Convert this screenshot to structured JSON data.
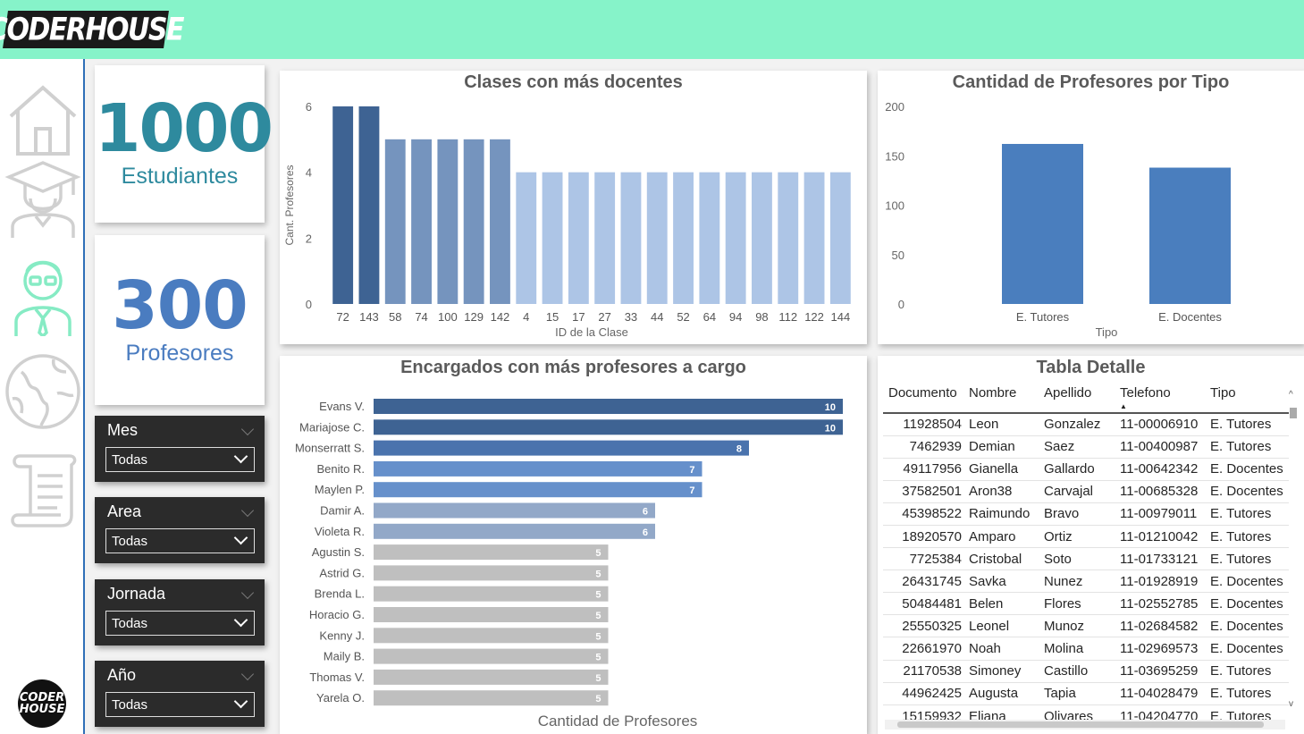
{
  "header": {
    "logo_text": "CODERHOUSE"
  },
  "sidebar": {
    "items": [
      {
        "name": "home",
        "icon": "home-icon",
        "active": false
      },
      {
        "name": "students",
        "icon": "graduate-icon",
        "active": false
      },
      {
        "name": "teachers",
        "icon": "teacher-icon",
        "active": true
      },
      {
        "name": "world",
        "icon": "globe-icon",
        "active": false
      },
      {
        "name": "scroll",
        "icon": "scroll-icon",
        "active": false
      }
    ],
    "bottom_logo": [
      "CODER",
      "HOUSE"
    ]
  },
  "kpis": {
    "students": {
      "value": "1000",
      "label": "Estudiantes",
      "color": "#2e8a9e"
    },
    "teachers": {
      "value": "300",
      "label": "Profesores",
      "color": "#4a7cc0"
    }
  },
  "slicers": [
    {
      "title": "Mes",
      "value": "Todas"
    },
    {
      "title": "Area",
      "value": "Todas"
    },
    {
      "title": "Jornada",
      "value": "Todas"
    },
    {
      "title": "Año",
      "value": "Todas"
    }
  ],
  "charts": {
    "clases": {
      "title": "Clases con más docentes"
    },
    "tipo": {
      "title": "Cantidad de Profesores por Tipo"
    },
    "encargados": {
      "title": "Encargados con más profesores a cargo"
    }
  },
  "chart_data": [
    {
      "type": "bar",
      "title": "Clases con más docentes",
      "xlabel": "ID de la Clase",
      "ylabel": "Cant. Profesores",
      "ylim": [
        0,
        6
      ],
      "yticks": [
        0,
        2,
        4,
        6
      ],
      "categories": [
        "72",
        "143",
        "58",
        "74",
        "100",
        "129",
        "142",
        "4",
        "15",
        "17",
        "27",
        "33",
        "44",
        "52",
        "64",
        "94",
        "98",
        "112",
        "122",
        "144"
      ],
      "values": [
        6,
        6,
        5,
        5,
        5,
        5,
        5,
        4,
        4,
        4,
        4,
        4,
        4,
        4,
        4,
        4,
        4,
        4,
        4,
        4
      ],
      "colors": {
        "6": "#3e6393",
        "5": "#7594be",
        "4": "#adc5e6"
      }
    },
    {
      "type": "bar",
      "title": "Cantidad de Profesores por Tipo",
      "xlabel": "Tipo",
      "ylabel": "",
      "ylim": [
        0,
        200
      ],
      "yticks": [
        0,
        50,
        100,
        150,
        200
      ],
      "categories": [
        "E. Tutores",
        "E. Docentes"
      ],
      "values": [
        162,
        138
      ],
      "color": "#4a7ebe"
    },
    {
      "type": "bar",
      "orientation": "horizontal",
      "title": "Encargados con más profesores a cargo",
      "xlabel": "Cantidad de Profesores",
      "ylabel": "",
      "xlim": [
        0,
        10
      ],
      "categories": [
        "Evans V.",
        "Mariajose C.",
        "Monserratt S.",
        "Benito R.",
        "Maylen P.",
        "Damir A.",
        "Violeta R.",
        "Agustin S.",
        "Astrid G.",
        "Brenda L.",
        "Horacio G.",
        "Kenny J.",
        "Maily B.",
        "Thomas V.",
        "Yarela O."
      ],
      "values": [
        10,
        10,
        8,
        7,
        7,
        6,
        6,
        5,
        5,
        5,
        5,
        5,
        5,
        5,
        5
      ],
      "colors": {
        "10": "#3e6393",
        "8": "#4a73ad",
        "7": "#6690cb",
        "6": "#92a8c8",
        "5": "#bfbfbf"
      }
    }
  ],
  "table": {
    "title": "Tabla Detalle",
    "columns": [
      "Documento",
      "Nombre",
      "Apellido",
      "Telefono",
      "Tipo"
    ],
    "sorted_column": "Telefono",
    "rows": [
      [
        "11928504",
        "Leon",
        "Gonzalez",
        "11-00006910",
        "E. Tutores"
      ],
      [
        "7462939",
        "Demian",
        "Saez",
        "11-00400987",
        "E. Tutores"
      ],
      [
        "49117956",
        "Gianella",
        "Gallardo",
        "11-00642342",
        "E. Docentes"
      ],
      [
        "37582501",
        "Aron38",
        "Carvajal",
        "11-00685328",
        "E. Docentes"
      ],
      [
        "45398522",
        "Raimundo",
        "Bravo",
        "11-00979011",
        "E. Tutores"
      ],
      [
        "18920570",
        "Amparo",
        "Ortiz",
        "11-01210042",
        "E. Tutores"
      ],
      [
        "7725384",
        "Cristobal",
        "Soto",
        "11-01733121",
        "E. Tutores"
      ],
      [
        "26431745",
        "Savka",
        "Nunez",
        "11-01928919",
        "E. Docentes"
      ],
      [
        "50484481",
        "Belen",
        "Flores",
        "11-02552785",
        "E. Docentes"
      ],
      [
        "25550325",
        "Leonel",
        "Munoz",
        "11-02684582",
        "E. Docentes"
      ],
      [
        "22661970",
        "Noah",
        "Molina",
        "11-02969573",
        "E. Docentes"
      ],
      [
        "21170538",
        "Simoney",
        "Castillo",
        "11-03695259",
        "E. Tutores"
      ],
      [
        "44962425",
        "Augusta",
        "Tapia",
        "11-04028479",
        "E. Tutores"
      ],
      [
        "15159932",
        "Eliana",
        "Olivares",
        "11-04204770",
        "E. Tutores"
      ]
    ]
  }
}
